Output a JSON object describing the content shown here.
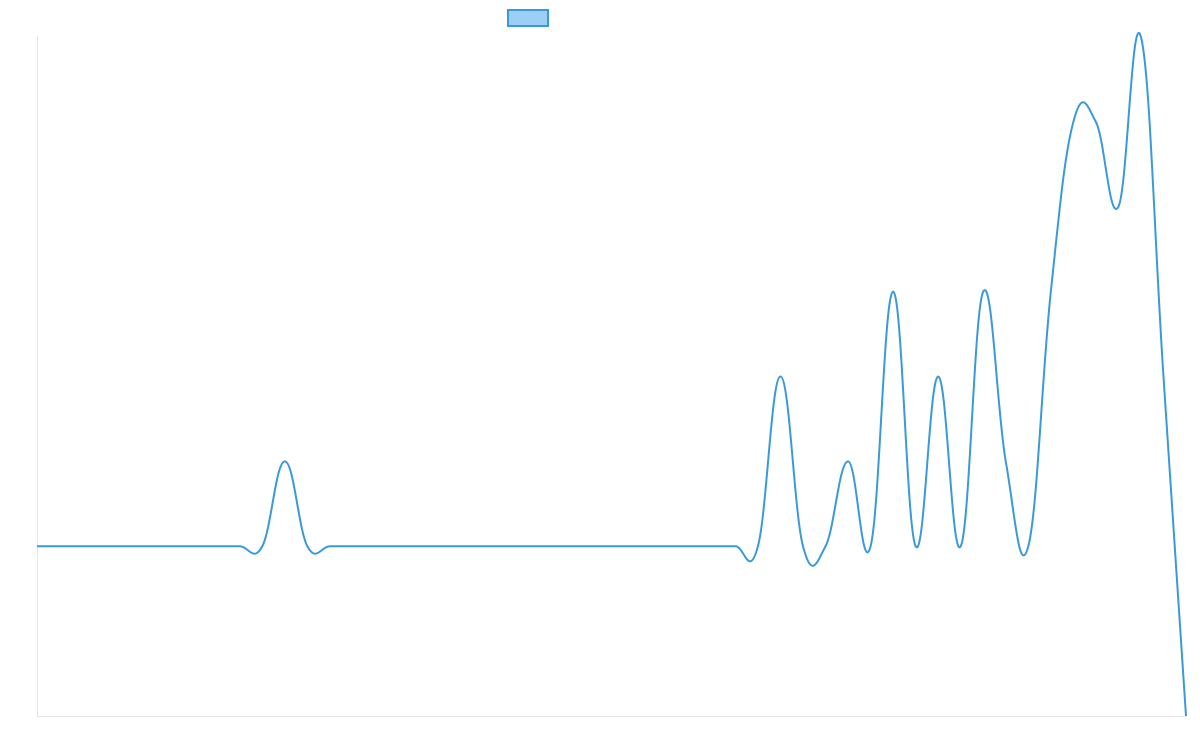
{
  "chart_data": {
    "type": "line",
    "title": "",
    "xlabel": "",
    "ylabel": "",
    "legend": {
      "placement": "top-center",
      "entries": [
        {
          "label": ""
        }
      ]
    },
    "grid": false,
    "x": [
      0,
      1,
      2,
      3,
      4,
      5,
      6,
      7,
      8,
      9,
      10,
      11,
      12,
      13,
      14,
      15,
      16,
      17,
      18,
      19,
      20,
      21,
      22,
      23,
      24,
      25,
      26,
      27,
      28,
      29,
      30,
      31,
      32,
      33,
      34,
      35,
      36,
      37,
      38,
      39,
      40,
      41,
      42,
      43,
      44,
      45,
      46,
      47,
      48,
      49,
      50,
      51
    ],
    "xlim": [
      0,
      51
    ],
    "ylim": [
      -2,
      6
    ],
    "series": [
      {
        "color": "#3a9ad9",
        "fill": "#9ad0f5",
        "values": [
          0,
          0,
          0,
          0,
          0,
          0,
          0,
          0,
          0,
          0,
          0,
          1,
          0,
          0,
          0,
          0,
          0,
          0,
          0,
          0,
          0,
          0,
          0,
          0,
          0,
          0,
          0,
          0,
          0,
          0,
          0,
          0,
          0,
          2,
          0,
          0,
          1,
          0,
          3,
          0,
          2,
          0,
          3,
          1,
          0,
          3,
          5,
          5,
          4,
          6,
          2,
          -2
        ]
      }
    ]
  }
}
